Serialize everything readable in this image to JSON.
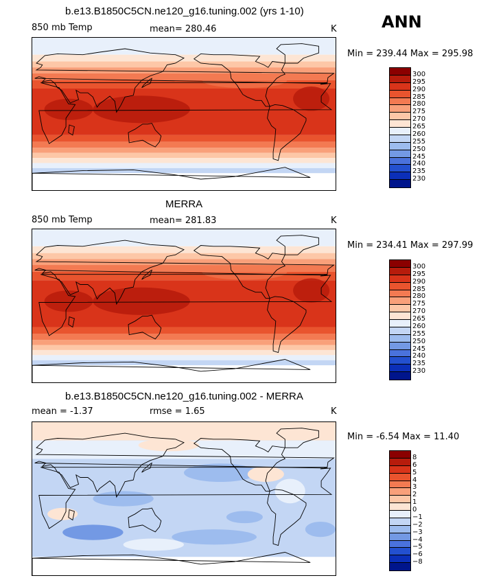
{
  "season": "ANN",
  "panels": [
    {
      "title": "b.e13.B1850C5CN.ne120_g16.tuning.002 (yrs 1-10)",
      "left_label": "850 mb Temp",
      "stat_label": "mean= 280.46",
      "units": "K",
      "minmax": "Min = 239.44 Max = 295.98",
      "colorbar": {
        "labels": [
          "300",
          "295",
          "290",
          "285",
          "280",
          "275",
          "270",
          "265",
          "260",
          "255",
          "250",
          "245",
          "240",
          "235",
          "230"
        ],
        "colors": [
          "#8b0000",
          "#b71c0c",
          "#d9341a",
          "#e9542e",
          "#f37a52",
          "#f9a07a",
          "#fdc7a7",
          "#fde5d4",
          "#e8f0fb",
          "#c3d6f4",
          "#9dbcee",
          "#7399e4",
          "#4a72dc",
          "#2350cf",
          "#0b2fb8",
          "#00158c"
        ]
      },
      "field": "temp"
    },
    {
      "title": "MERRA",
      "left_label": "850 mb Temp",
      "stat_label": "mean= 281.83",
      "units": "K",
      "minmax": "Min = 234.41 Max = 297.99",
      "colorbar": {
        "labels": [
          "300",
          "295",
          "290",
          "285",
          "280",
          "275",
          "270",
          "265",
          "260",
          "255",
          "250",
          "245",
          "240",
          "235",
          "230"
        ],
        "colors": [
          "#8b0000",
          "#b71c0c",
          "#d9341a",
          "#e9542e",
          "#f37a52",
          "#f9a07a",
          "#fdc7a7",
          "#fde5d4",
          "#e8f0fb",
          "#c3d6f4",
          "#9dbcee",
          "#7399e4",
          "#4a72dc",
          "#2350cf",
          "#0b2fb8",
          "#00158c"
        ]
      },
      "field": "temp"
    },
    {
      "title": "b.e13.B1850C5CN.ne120_g16.tuning.002 - MERRA",
      "left_label": "mean =  -1.37",
      "stat_label": "rmse =   1.65",
      "units": "K",
      "minmax": "Min =  -6.54 Max =  11.40",
      "colorbar": {
        "labels": [
          "8",
          "6",
          "5",
          "4",
          "3",
          "2",
          "1",
          "0",
          "−1",
          "−2",
          "−3",
          "−4",
          "−5",
          "−6",
          "−8"
        ],
        "colors": [
          "#8b0000",
          "#b71c0c",
          "#d9341a",
          "#e9542e",
          "#f37a52",
          "#f9a07a",
          "#fdc7a7",
          "#fde5d4",
          "#e8f0fb",
          "#c3d6f4",
          "#9dbcee",
          "#7399e4",
          "#4a72dc",
          "#2350cf",
          "#0b2fb8",
          "#00158c"
        ]
      },
      "field": "diff"
    }
  ]
}
